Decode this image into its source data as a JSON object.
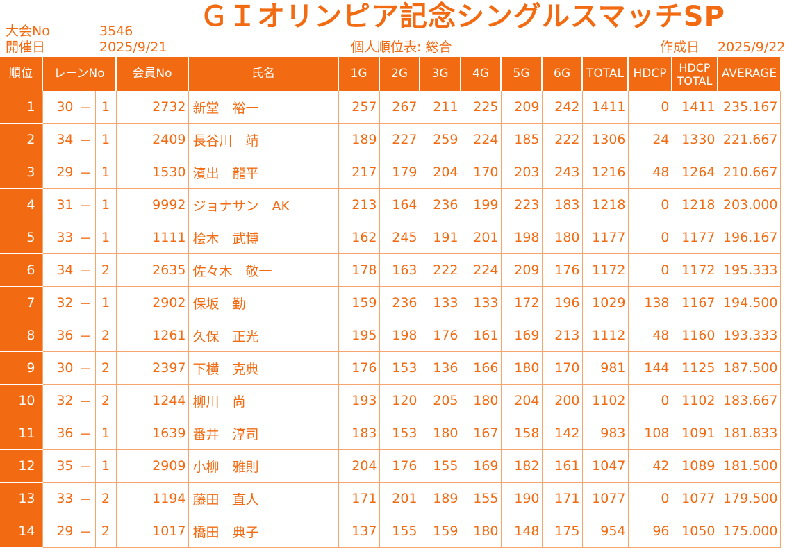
{
  "header": {
    "event_no_label": "大会No",
    "event_no": "3546",
    "date_label": "開催日",
    "date": "2025/9/21",
    "title": "ＧＩオリンピア記念シングルスマッチSP",
    "subtitle": "個人順位表: 総合",
    "created_label": "作成日",
    "created_date": "2025/9/22"
  },
  "columns": [
    "順位",
    "レーンNo",
    "会員No",
    "氏名",
    "1G",
    "2G",
    "3G",
    "4G",
    "5G",
    "6G",
    "TOTAL",
    "HDCP",
    "HDCP TOTAL",
    "AVERAGE"
  ],
  "rows": [
    {
      "rank": "1",
      "lane": "30",
      "dash": "－",
      "seat": "1",
      "member": "2732",
      "name": "新堂　裕一",
      "g1": "257",
      "g2": "267",
      "g3": "211",
      "g4": "225",
      "g5": "209",
      "g6": "242",
      "total": "1411",
      "hdcp": "0",
      "hdcp_total": "1411",
      "average": "235.167"
    },
    {
      "rank": "2",
      "lane": "34",
      "dash": "－",
      "seat": "1",
      "member": "2409",
      "name": "長谷川　靖",
      "g1": "189",
      "g2": "227",
      "g3": "259",
      "g4": "224",
      "g5": "185",
      "g6": "222",
      "total": "1306",
      "hdcp": "24",
      "hdcp_total": "1330",
      "average": "221.667"
    },
    {
      "rank": "3",
      "lane": "29",
      "dash": "－",
      "seat": "1",
      "member": "1530",
      "name": "濱出　龍平",
      "g1": "217",
      "g2": "179",
      "g3": "204",
      "g4": "170",
      "g5": "203",
      "g6": "243",
      "total": "1216",
      "hdcp": "48",
      "hdcp_total": "1264",
      "average": "210.667"
    },
    {
      "rank": "4",
      "lane": "31",
      "dash": "－",
      "seat": "1",
      "member": "9992",
      "name": "ジョナサン　AK",
      "g1": "213",
      "g2": "164",
      "g3": "236",
      "g4": "199",
      "g5": "223",
      "g6": "183",
      "total": "1218",
      "hdcp": "0",
      "hdcp_total": "1218",
      "average": "203.000"
    },
    {
      "rank": "5",
      "lane": "33",
      "dash": "－",
      "seat": "1",
      "member": "1111",
      "name": "桧木　武博",
      "g1": "162",
      "g2": "245",
      "g3": "191",
      "g4": "201",
      "g5": "198",
      "g6": "180",
      "total": "1177",
      "hdcp": "0",
      "hdcp_total": "1177",
      "average": "196.167"
    },
    {
      "rank": "6",
      "lane": "34",
      "dash": "－",
      "seat": "2",
      "member": "2635",
      "name": "佐々木　敬一",
      "g1": "178",
      "g2": "163",
      "g3": "222",
      "g4": "224",
      "g5": "209",
      "g6": "176",
      "total": "1172",
      "hdcp": "0",
      "hdcp_total": "1172",
      "average": "195.333"
    },
    {
      "rank": "7",
      "lane": "32",
      "dash": "－",
      "seat": "1",
      "member": "2902",
      "name": "保坂　勤",
      "g1": "159",
      "g2": "236",
      "g3": "133",
      "g4": "133",
      "g5": "172",
      "g6": "196",
      "total": "1029",
      "hdcp": "138",
      "hdcp_total": "1167",
      "average": "194.500"
    },
    {
      "rank": "8",
      "lane": "36",
      "dash": "－",
      "seat": "2",
      "member": "1261",
      "name": "久保　正光",
      "g1": "195",
      "g2": "198",
      "g3": "176",
      "g4": "161",
      "g5": "169",
      "g6": "213",
      "total": "1112",
      "hdcp": "48",
      "hdcp_total": "1160",
      "average": "193.333"
    },
    {
      "rank": "9",
      "lane": "30",
      "dash": "－",
      "seat": "2",
      "member": "2397",
      "name": "下横　克典",
      "g1": "176",
      "g2": "153",
      "g3": "136",
      "g4": "166",
      "g5": "180",
      "g6": "170",
      "total": "981",
      "hdcp": "144",
      "hdcp_total": "1125",
      "average": "187.500"
    },
    {
      "rank": "10",
      "lane": "32",
      "dash": "－",
      "seat": "2",
      "member": "1244",
      "name": "柳川　尚",
      "g1": "193",
      "g2": "120",
      "g3": "205",
      "g4": "180",
      "g5": "204",
      "g6": "200",
      "total": "1102",
      "hdcp": "0",
      "hdcp_total": "1102",
      "average": "183.667"
    },
    {
      "rank": "11",
      "lane": "36",
      "dash": "－",
      "seat": "1",
      "member": "1639",
      "name": "番井　淳司",
      "g1": "183",
      "g2": "153",
      "g3": "180",
      "g4": "167",
      "g5": "158",
      "g6": "142",
      "total": "983",
      "hdcp": "108",
      "hdcp_total": "1091",
      "average": "181.833"
    },
    {
      "rank": "12",
      "lane": "35",
      "dash": "－",
      "seat": "1",
      "member": "2909",
      "name": "小柳　雅則",
      "g1": "204",
      "g2": "176",
      "g3": "155",
      "g4": "169",
      "g5": "182",
      "g6": "161",
      "total": "1047",
      "hdcp": "42",
      "hdcp_total": "1089",
      "average": "181.500"
    },
    {
      "rank": "13",
      "lane": "33",
      "dash": "－",
      "seat": "2",
      "member": "1194",
      "name": "藤田　直人",
      "g1": "171",
      "g2": "201",
      "g3": "189",
      "g4": "155",
      "g5": "190",
      "g6": "171",
      "total": "1077",
      "hdcp": "0",
      "hdcp_total": "1077",
      "average": "179.500"
    },
    {
      "rank": "14",
      "lane": "29",
      "dash": "－",
      "seat": "2",
      "member": "1017",
      "name": "橋田　典子",
      "g1": "137",
      "g2": "155",
      "g3": "159",
      "g4": "180",
      "g5": "148",
      "g6": "175",
      "total": "954",
      "hdcp": "96",
      "hdcp_total": "1050",
      "average": "175.000"
    }
  ],
  "colors": {
    "accent": "#F26B12",
    "header_text": "#FFFFFF",
    "grid": "#F7A56C"
  }
}
